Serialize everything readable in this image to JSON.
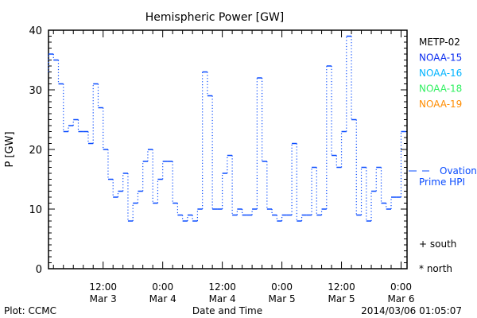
{
  "chart_data": {
    "type": "line",
    "title": "Hemispheric Power [GW]",
    "xlabel": "Date and Time",
    "ylabel": "P [GW]",
    "ylim": [
      0,
      40
    ],
    "yticks": [
      "0",
      "10",
      "20",
      "30",
      "40"
    ],
    "xlim_hours_since_mar3_0000": [
      1,
      73.2
    ],
    "xticks": [
      {
        "hour": 12,
        "time": "12:00",
        "date": "Mar 3"
      },
      {
        "hour": 24,
        "time": "0:00",
        "date": "Mar 4"
      },
      {
        "hour": 36,
        "time": "12:00",
        "date": "Mar 4"
      },
      {
        "hour": 48,
        "time": "0:00",
        "date": "Mar 5"
      },
      {
        "hour": 60,
        "time": "12:00",
        "date": "Mar 5"
      },
      {
        "hour": 72,
        "time": "0:00",
        "date": "Mar 6"
      }
    ],
    "legend": [
      {
        "label": "METP-02",
        "color": "#000000"
      },
      {
        "label": "NOAA-15",
        "color": "#0a2cf0"
      },
      {
        "label": "NOAA-16",
        "color": "#00b4ff"
      },
      {
        "label": "NOAA-18",
        "color": "#30f060"
      },
      {
        "label": "NOAA-19",
        "color": "#ff8c00"
      }
    ],
    "series": [
      {
        "name": "NOAA-15",
        "color": "#0a4cff",
        "style": "step",
        "start_hour": 1,
        "initial_value": 33,
        "hourly_values": [
          36,
          35,
          31,
          23,
          24,
          25,
          23,
          23,
          21,
          31,
          27,
          20,
          15,
          12,
          13,
          16,
          8,
          11,
          13,
          18,
          20,
          11,
          15,
          18,
          18,
          11,
          9,
          8,
          9,
          8,
          10,
          33,
          29,
          10,
          10,
          16,
          19,
          9,
          10,
          9,
          9,
          10,
          32,
          18,
          10,
          9,
          8,
          9,
          9,
          21,
          8,
          9,
          9,
          17,
          9,
          10,
          34,
          19,
          17,
          23,
          39,
          25,
          9,
          17,
          8,
          13,
          17,
          11,
          10,
          12,
          12,
          23
        ]
      }
    ],
    "ovation": {
      "value": 16.5,
      "label_line1": "Ovation",
      "label_line2": "Prime HPI",
      "color": "#0a4cff"
    },
    "hemisphere_markers": {
      "south": "+ south",
      "north": "* north"
    }
  },
  "footer": {
    "left": "Plot: CCMC",
    "right": "2014/03/06 01:05:07"
  }
}
